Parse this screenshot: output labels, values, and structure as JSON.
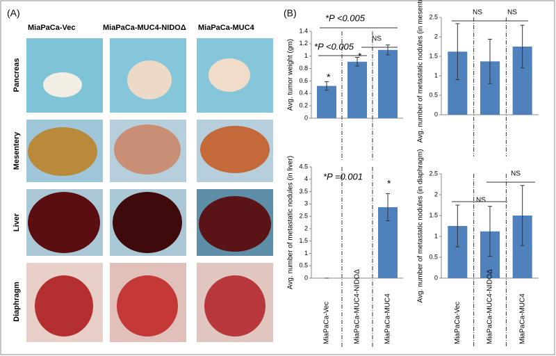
{
  "panel_a": {
    "label": "(A)",
    "columns": [
      "MiaPaCa-Vec",
      "MiaPaCa-MUC4-NIDOΔ",
      "MiaPaCa-MUC4"
    ],
    "rows": [
      "Pancreas",
      "Mesentery",
      "Liver",
      "Diaphragm"
    ]
  },
  "panel_b": {
    "label": "(B)"
  },
  "chart_data": [
    {
      "type": "bar",
      "y_label": "Avg. tumor weight (gm)",
      "categories": [
        null,
        null,
        null
      ],
      "values": [
        0.52,
        0.91,
        1.1
      ],
      "errors": [
        0.07,
        0.07,
        0.08
      ],
      "color": "#4f81bd",
      "ylim": [
        0,
        1.4
      ],
      "yticks": [
        0,
        0.2,
        0.4,
        0.6,
        0.8,
        1,
        1.2,
        1.4
      ],
      "annotations": [
        "*P <0.005",
        "*P <0.005",
        "NS",
        "*",
        "*"
      ]
    },
    {
      "type": "bar",
      "y_label": "Avg. number of metastatic nodules (in mesentery)",
      "categories": [
        null,
        null,
        null
      ],
      "values": [
        1.62,
        1.37,
        1.75
      ],
      "errors": [
        0.72,
        0.57,
        0.55
      ],
      "color": "#4f81bd",
      "ylim": [
        0,
        2.5
      ],
      "yticks": [
        0,
        0.5,
        1,
        1.5,
        2,
        2.5
      ],
      "annotations": [
        "NS",
        "NS"
      ]
    },
    {
      "type": "bar",
      "y_label": "Avg. number of metastatic nodules (in liver)",
      "categories": [
        "MiaPaCa-Vec",
        "MiaPaCa-MUC4-NIDOΔ",
        "MiaPaCa-MUC4"
      ],
      "values": [
        0,
        0,
        2.87
      ],
      "errors": [
        0,
        0,
        0.55
      ],
      "color": "#4f81bd",
      "ylim": [
        0,
        4.5
      ],
      "yticks": [
        0,
        0.5,
        1,
        1.5,
        2,
        2.5,
        3,
        3.5,
        4,
        4.5
      ],
      "annotations": [
        "*P =0.001",
        "*"
      ]
    },
    {
      "type": "bar",
      "y_label": "Avg. number of metastatic nodules (in diaphragm)",
      "categories": [
        "MiaPaCa-Vec",
        "MiaPaCa-MUC4-NIDOΔ",
        "MiaPaCa-MUC4"
      ],
      "values": [
        1.25,
        1.12,
        1.5
      ],
      "errors": [
        0.5,
        0.6,
        0.72
      ],
      "color": "#4f81bd",
      "ylim": [
        0,
        2.5
      ],
      "yticks": [
        0,
        0.5,
        1,
        1.5,
        2,
        2.5
      ],
      "annotations": [
        "NS",
        "NS"
      ]
    }
  ]
}
